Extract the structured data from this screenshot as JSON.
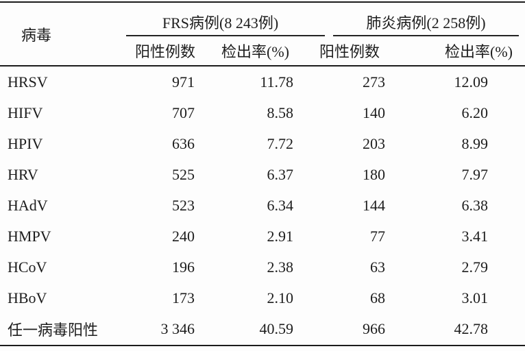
{
  "table": {
    "corner_header": "病毒",
    "groups": [
      {
        "label": "FRS病例(8 243例)"
      },
      {
        "label": "肺炎病例(2 258例)"
      }
    ],
    "sub_headers": [
      "阳性例数",
      "检出率(%)",
      "阳性例数",
      "检出率(%)"
    ],
    "rows": [
      {
        "virus": "HRSV",
        "frs_positive": "971",
        "frs_rate": "11.78",
        "pneumonia_positive": "273",
        "pneumonia_rate": "12.09"
      },
      {
        "virus": "HIFV",
        "frs_positive": "707",
        "frs_rate": "8.58",
        "pneumonia_positive": "140",
        "pneumonia_rate": "6.20"
      },
      {
        "virus": "HPIV",
        "frs_positive": "636",
        "frs_rate": "7.72",
        "pneumonia_positive": "203",
        "pneumonia_rate": "8.99"
      },
      {
        "virus": "HRV",
        "frs_positive": "525",
        "frs_rate": "6.37",
        "pneumonia_positive": "180",
        "pneumonia_rate": "7.97"
      },
      {
        "virus": "HAdV",
        "frs_positive": "523",
        "frs_rate": "6.34",
        "pneumonia_positive": "144",
        "pneumonia_rate": "6.38"
      },
      {
        "virus": "HMPV",
        "frs_positive": "240",
        "frs_rate": "2.91",
        "pneumonia_positive": "77",
        "pneumonia_rate": "3.41"
      },
      {
        "virus": "HCoV",
        "frs_positive": "196",
        "frs_rate": "2.38",
        "pneumonia_positive": "63",
        "pneumonia_rate": "2.79"
      },
      {
        "virus": "HBoV",
        "frs_positive": "173",
        "frs_rate": "2.10",
        "pneumonia_positive": "68",
        "pneumonia_rate": "3.01"
      },
      {
        "virus": "任一病毒阳性",
        "frs_positive": "3 346",
        "frs_rate": "40.59",
        "pneumonia_positive": "966",
        "pneumonia_rate": "42.78"
      }
    ]
  },
  "colors": {
    "text": "#1d1d1d",
    "rule": "#1b1b1b",
    "background": "#fdfdfd"
  }
}
